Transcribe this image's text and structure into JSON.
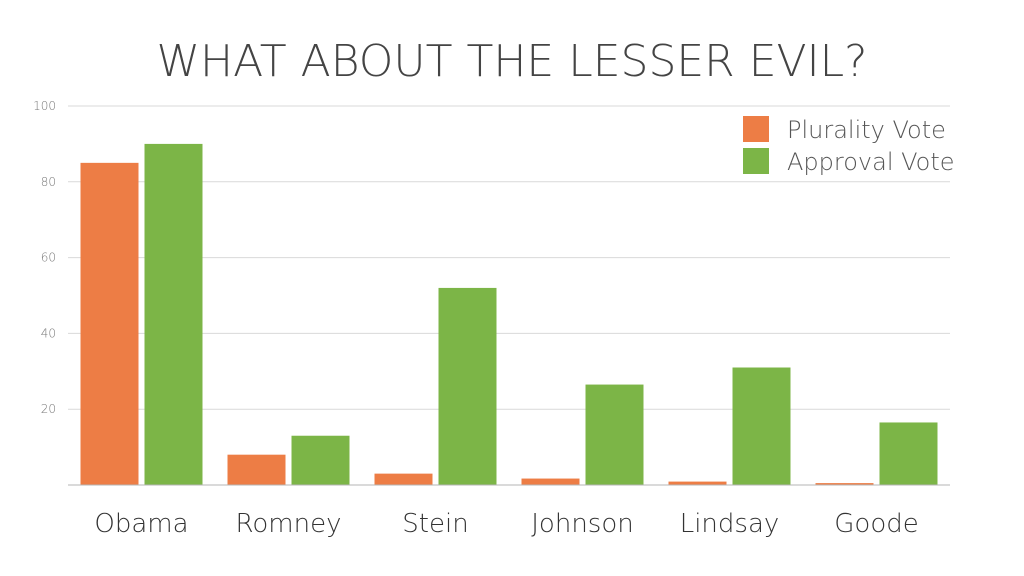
{
  "chart_data": {
    "type": "bar",
    "title": "WHAT ABOUT THE LESSER EVIL?",
    "xlabel": "",
    "ylabel": "",
    "categories": [
      "Obama",
      "Romney",
      "Stein",
      "Johnson",
      "Lindsay",
      "Goode"
    ],
    "series": [
      {
        "name": "Plurality Vote",
        "color": "#ED7D45",
        "values": [
          85,
          8,
          3,
          1.7,
          0.9,
          0.5
        ]
      },
      {
        "name": "Approval Vote",
        "color": "#7CB547",
        "values": [
          90,
          13,
          52,
          26.5,
          31,
          16.5
        ]
      }
    ],
    "ylim": [
      0,
      100
    ],
    "yticks": [
      "20",
      "40",
      "60",
      "80",
      "100"
    ],
    "grid": true,
    "legend": "top-right"
  }
}
